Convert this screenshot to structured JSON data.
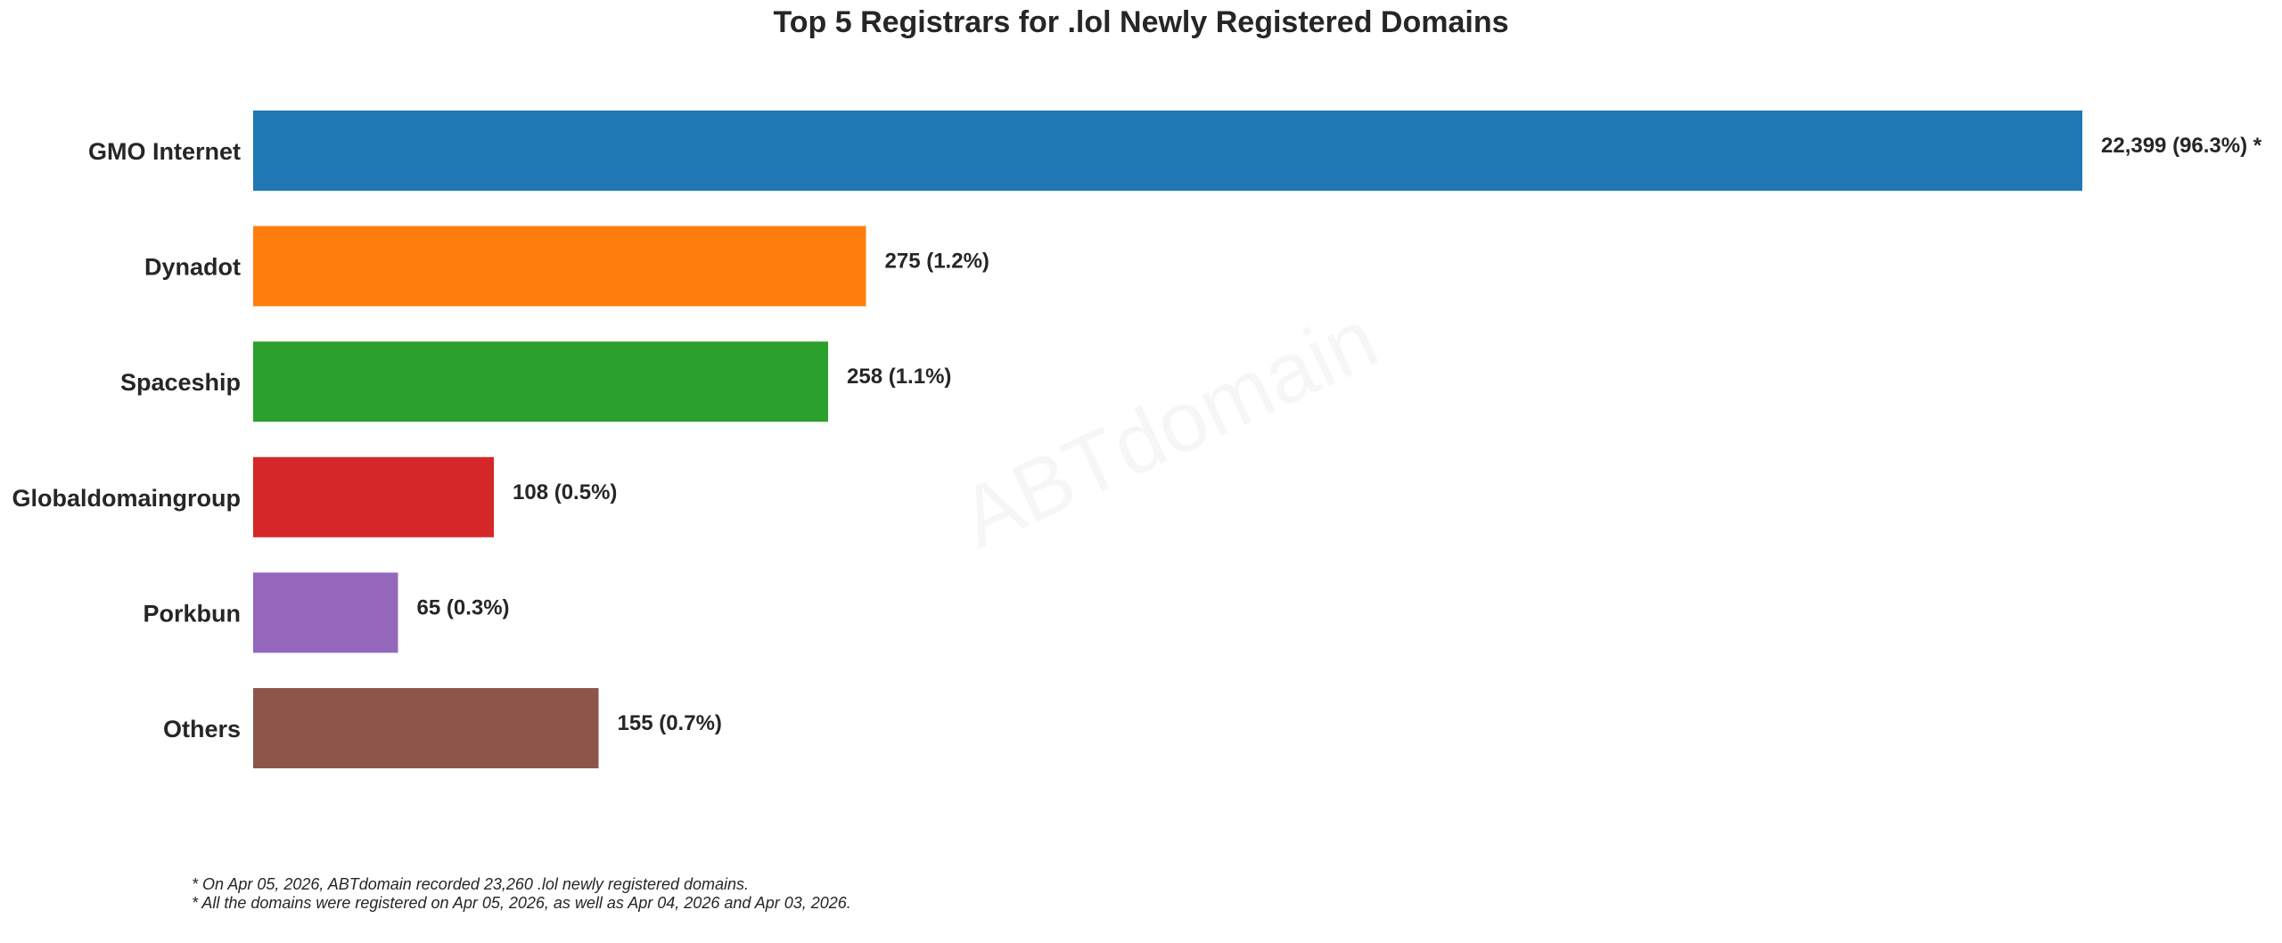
{
  "chart_data": {
    "type": "bar",
    "orientation": "horizontal",
    "title": "Top 5 Registrars for .lol Newly Registered Domains",
    "xlabel": "",
    "ylabel": "",
    "grid": false,
    "categories": [
      "GMO Internet",
      "Dynadot",
      "Spaceship",
      "Globaldomaingroup",
      "Porkbun",
      "Others"
    ],
    "values": [
      22399,
      275,
      258,
      108,
      65,
      155
    ],
    "value_labels": [
      "22,399 (96.3%) *",
      "275 (1.2%)",
      "258 (1.1%)",
      "108 (0.5%)",
      "65 (0.3%)",
      "155 (0.7%)"
    ],
    "colors": [
      "#1f77b4",
      "#ff7f0e",
      "#2ca02c",
      "#d62728",
      "#9467bd",
      "#8c564b"
    ],
    "axis_break": true,
    "watermark": "ABTdomain"
  },
  "footnotes": [
    "* On Apr 05, 2026, ABTdomain recorded 23,260 .lol newly registered domains.",
    "* All the domains were registered on Apr 05, 2026, as well as Apr 04, 2026 and Apr 03, 2026."
  ]
}
